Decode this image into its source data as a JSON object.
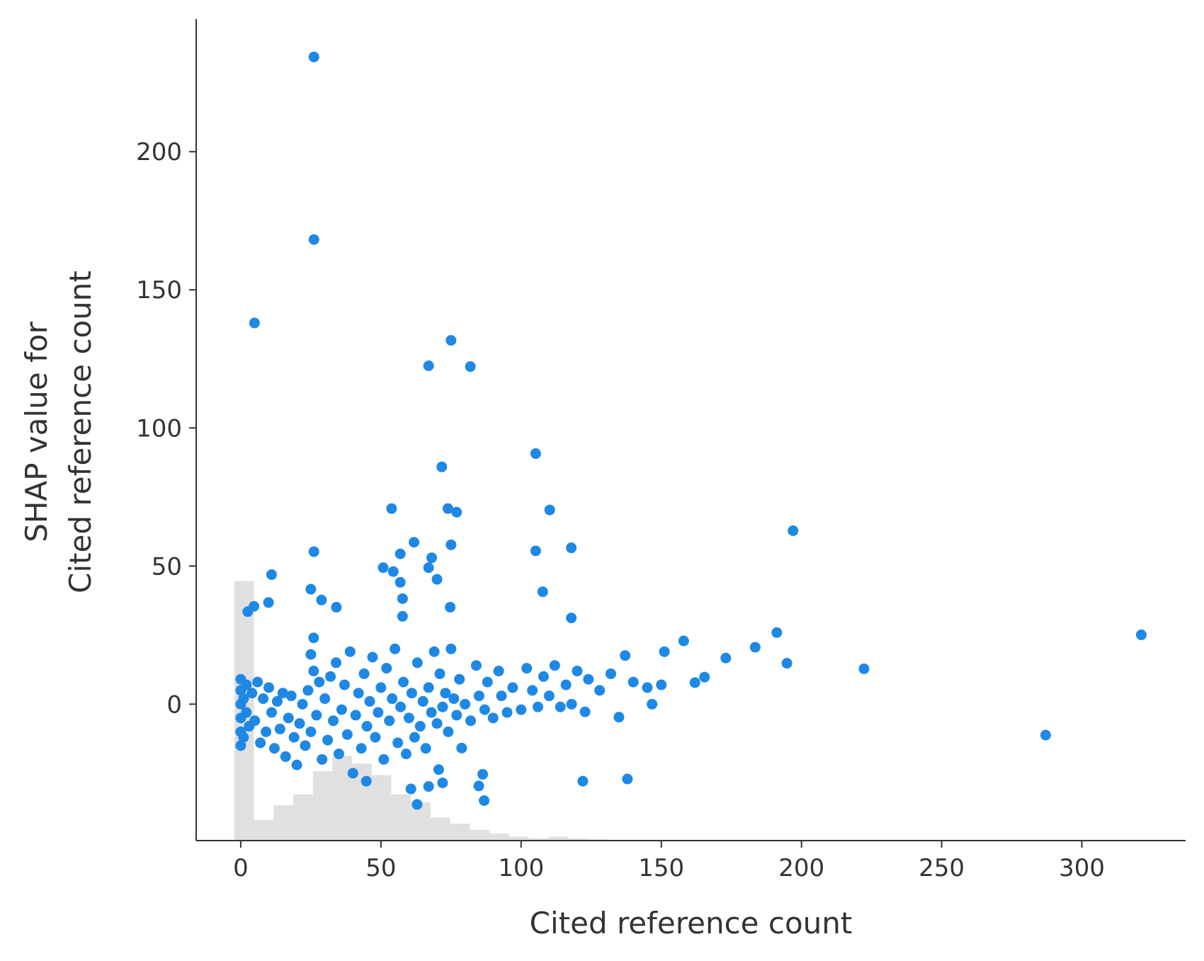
{
  "chart_data": [
    {
      "type": "scatter",
      "xlabel": "Cited reference count",
      "ylabel": [
        "SHAP value for",
        "Cited reference count"
      ],
      "color": "#1e88e5",
      "xlim": [
        -15.9,
        337
      ],
      "ylim": [
        -49.4,
        248
      ],
      "xticks": [
        0,
        50,
        100,
        150,
        200,
        250,
        300
      ],
      "yticks": [
        0,
        50,
        100,
        150,
        200
      ],
      "x": [
        26.1,
        26.1,
        4.9,
        75,
        67,
        81.9,
        105.2,
        71.7,
        53.8,
        73.9,
        77,
        110.2,
        197,
        75,
        61.8,
        56.9,
        105.2,
        117.9,
        26.1,
        68.1,
        50.8,
        11,
        54.4,
        67,
        70,
        56.9,
        25,
        107.7,
        57.7,
        9.9,
        28.8,
        34.1,
        74.7,
        4.7,
        2.5,
        57.7,
        117.9,
        191.2,
        321.2,
        158,
        183.5,
        194.8,
        173,
        222.3,
        151.1,
        137.1,
        287.1,
        122,
        137.9,
        86.8,
        62.9,
        84.9,
        60.7,
        67,
        72,
        70.6,
        86.3,
        44.8,
        78.8,
        134.9,
        122.8,
        146.7,
        162,
        165.4,
        0,
        0,
        0,
        0,
        0,
        0,
        1,
        1,
        2,
        2,
        3,
        4,
        5,
        6,
        7,
        8,
        9,
        10,
        11,
        12,
        13,
        14,
        15,
        16,
        17,
        18,
        19,
        20,
        21,
        22,
        23,
        24,
        25,
        25,
        26,
        26,
        27,
        28,
        29,
        30,
        31,
        32,
        33,
        34,
        35,
        36,
        37,
        38,
        39,
        40,
        41,
        42,
        43,
        44,
        45,
        46,
        47,
        48,
        49,
        50,
        51,
        52,
        53,
        54,
        55,
        56,
        57,
        58,
        59,
        60,
        61,
        62,
        63,
        64,
        65,
        66,
        67,
        68,
        69,
        70,
        71,
        72,
        73,
        74,
        75,
        76,
        77,
        78,
        80,
        82,
        84,
        85,
        87,
        88,
        90,
        92,
        93,
        95,
        97,
        100,
        102,
        104,
        106,
        108,
        110,
        112,
        114,
        116,
        118,
        120,
        124,
        128,
        132,
        140,
        145,
        150
      ],
      "y": [
        234.3,
        168.2,
        138,
        131.7,
        122.5,
        122.2,
        90.7,
        85.9,
        70.8,
        70.8,
        69.5,
        70.3,
        62.8,
        57.7,
        58.6,
        54.4,
        55.5,
        56.6,
        55.2,
        53,
        49.4,
        46.9,
        48,
        49.4,
        45.2,
        44.1,
        41.6,
        40.7,
        38.2,
        36.8,
        37.7,
        35.1,
        35.1,
        35.4,
        33.5,
        31.8,
        31.2,
        25.9,
        25.1,
        22.9,
        20.6,
        14.8,
        16.7,
        12.8,
        19,
        17.6,
        -11.2,
        -27.9,
        -27.1,
        -34.9,
        -36.3,
        -29.6,
        -30.7,
        -29.8,
        -28.5,
        -23.7,
        -25.4,
        -27.9,
        -15.9,
        -4.7,
        -2.8,
        0,
        7.8,
        9.8,
        -15,
        -10,
        -5,
        0,
        5,
        9,
        -12,
        2,
        7,
        -3,
        -8,
        4,
        -6,
        8,
        -14,
        2,
        -10,
        6,
        -3,
        -16,
        1,
        -9,
        4,
        -19,
        -5,
        3,
        -12,
        -22,
        -7,
        0,
        -15,
        5,
        18,
        -10,
        24,
        12,
        -4,
        8,
        -20,
        2,
        -13,
        10,
        -6,
        15,
        -18,
        -2,
        7,
        -11,
        19,
        -25,
        -4,
        4,
        -16,
        11,
        -8,
        1,
        17,
        -12,
        -3,
        6,
        -20,
        13,
        -6,
        2,
        20,
        -14,
        -1,
        8,
        -18,
        -5,
        4,
        -12,
        15,
        -8,
        1,
        -16,
        6,
        -3,
        19,
        -7,
        11,
        -1,
        4,
        -10,
        20,
        2,
        -4,
        9,
        0,
        -6,
        14,
        3,
        -2,
        8,
        -5,
        12,
        3,
        -3,
        6,
        -2,
        13,
        5,
        -1,
        10,
        3,
        14,
        -1,
        7,
        0,
        12,
        9,
        5,
        11,
        8,
        6,
        7
      ]
    },
    {
      "type": "histogram",
      "color": "#e0e0e0",
      "bins": [
        -2.3,
        4.7,
        11.7,
        18.7,
        25.7,
        32.7,
        39.7,
        46.7,
        53.7,
        60.7,
        67.7,
        74.7,
        81.7,
        88.7,
        95.7,
        102.7,
        109.7,
        116.7,
        123.7,
        130.7,
        137.7
      ],
      "counts": [
        337,
        27,
        46,
        60,
        90,
        110,
        100,
        85,
        60,
        50,
        30,
        22,
        14,
        9,
        5,
        3,
        5,
        3,
        2,
        1
      ]
    }
  ]
}
